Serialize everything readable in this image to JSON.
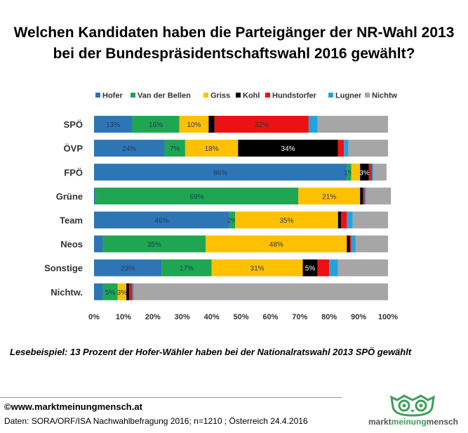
{
  "title": {
    "line1": "Welchen Kandidaten haben die Parteigänger der NR-Wahl 2013",
    "line2": "bei der Bundespräsidentschaftswahl 2016 gewählt?"
  },
  "chart_data": {
    "type": "bar",
    "orientation": "horizontal",
    "stacked": true,
    "categories": [
      "SPÖ",
      "ÖVP",
      "FPÖ",
      "Grüne",
      "Team",
      "Neos",
      "Sonstige",
      "Nichtw."
    ],
    "series": [
      {
        "name": "Hofer",
        "color": "#2e75b6",
        "values": [
          13,
          24,
          86,
          0.5,
          46,
          3,
          23,
          3
        ],
        "labels": [
          "13%",
          "24%",
          "86%",
          "",
          "46%",
          "",
          "23%",
          ""
        ]
      },
      {
        "name": "Van der Bellen",
        "color": "#1ea652",
        "values": [
          16,
          7,
          1.5,
          69,
          2,
          35,
          17,
          5
        ],
        "labels": [
          "16%",
          "7%",
          "1%",
          "69%",
          "2%",
          "35%",
          "17%",
          "5%"
        ]
      },
      {
        "name": "Griss",
        "color": "#ffc000",
        "values": [
          10,
          18,
          3,
          21,
          35,
          48,
          31,
          3
        ],
        "labels": [
          "10%",
          "18%",
          "",
          "21%",
          "35%",
          "48%",
          "31%",
          "3%"
        ]
      },
      {
        "name": "Kohl",
        "color": "#000000",
        "values": [
          2,
          34,
          3,
          1,
          1,
          1,
          5,
          1
        ],
        "labels": [
          "",
          "34%",
          "3%",
          "",
          "",
          "",
          "5%",
          ""
        ]
      },
      {
        "name": "Hundstorfer",
        "color": "#ee1111",
        "values": [
          32,
          2,
          1,
          0.5,
          2,
          0.5,
          4,
          1
        ],
        "labels": [
          "32%",
          "",
          "",
          "",
          "",
          "",
          "",
          ""
        ]
      },
      {
        "name": "Lugner",
        "color": "#22a3e0",
        "values": [
          3,
          1.5,
          0.5,
          0.5,
          2,
          1.5,
          3,
          0.5
        ],
        "labels": [
          "",
          "",
          "",
          "",
          "",
          "",
          "",
          ""
        ]
      },
      {
        "name": "Nichtw",
        "color": "#a6a6a6",
        "values": [
          24,
          13.5,
          4.5,
          8.5,
          12,
          11,
          17,
          86.5
        ],
        "labels": [
          "",
          "",
          "",
          "",
          "",
          "",
          "",
          ""
        ]
      }
    ],
    "xlim": [
      0,
      100
    ],
    "xticks": [
      "0%",
      "10%",
      "20%",
      "30%",
      "40%",
      "50%",
      "60%",
      "70%",
      "80%",
      "90%",
      "100%"
    ],
    "legend_position": "top",
    "grid": false
  },
  "note": "Lesebeispiel: 13 Prozent der Hofer-Wähler haben bei der Nationalratswahl 2013 SPÖ gewählt",
  "footer": {
    "copyright": "©www.marktmeinungmensch.at",
    "source": "Daten: SORA/ORF/ISA Nachwahlbefragung 2016; n=1210 ; Österreich 24.4.2016"
  },
  "logo": {
    "part1": "markt",
    "part2": "meinung",
    "part3": "mensch"
  }
}
